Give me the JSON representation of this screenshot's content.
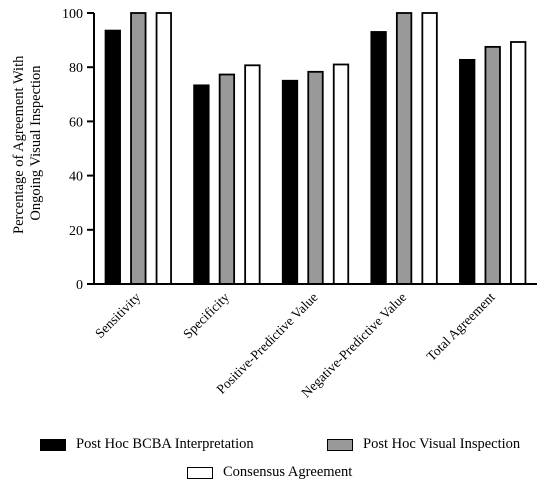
{
  "chart_data": {
    "type": "bar",
    "categories": [
      "Sensitivity",
      "Specificity",
      "Positive-Predictive Value",
      "Negative-Predictive Value",
      "Total Agreement"
    ],
    "series": [
      {
        "name": "Post Hoc BCBA Interpretation",
        "values": [
          93.5,
          73.3,
          75.0,
          93.0,
          82.7
        ],
        "color": "#000000"
      },
      {
        "name": "Post Hoc Visual Inspection",
        "values": [
          100,
          77.3,
          78.3,
          100,
          87.5
        ],
        "color": "#999999"
      },
      {
        "name": "Consensus Agreement",
        "values": [
          100,
          80.7,
          81.0,
          100,
          89.3
        ],
        "color": "#ffffff"
      }
    ],
    "ylabel_lines": [
      "Percentage of Agreement With",
      "Ongoing Visual Inspection"
    ],
    "xlabel": "",
    "ylim": [
      0,
      100
    ],
    "yticks": [
      0,
      20,
      40,
      60,
      80,
      100
    ],
    "legend_position": "bottom"
  }
}
